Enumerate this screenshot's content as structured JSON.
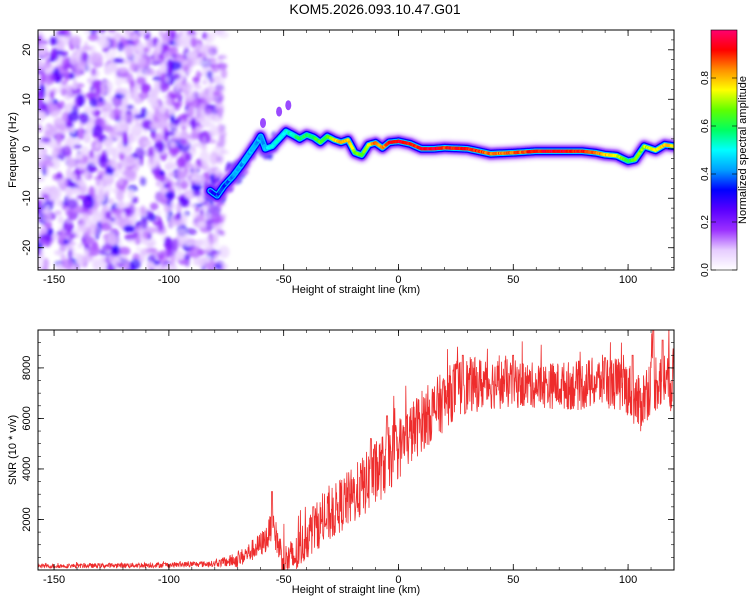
{
  "title": "KOM5.2026.093.10.47.G01",
  "colors": {
    "snr_line": "#ee2c2c",
    "frame": "#000000",
    "colormap": [
      "#ffffff",
      "#e6ccff",
      "#9b30ff",
      "#5a00ff",
      "#0000ff",
      "#00a0ff",
      "#00ffff",
      "#00ff60",
      "#60ff00",
      "#ffff00",
      "#ff9000",
      "#ff0000",
      "#ff0070"
    ]
  },
  "chart_data": [
    {
      "type": "heatmap",
      "name": "spectrogram",
      "title": "KOM5.2026.093.10.47.G01",
      "xlabel": "Height of straight line (km)",
      "ylabel": "Frequency (Hz)",
      "xlim": [
        -157,
        120
      ],
      "ylim": [
        -24.5,
        24
      ],
      "xticks": [
        -150,
        -100,
        -50,
        0,
        50,
        100
      ],
      "yticks": [
        -20,
        -10,
        0,
        10,
        20
      ],
      "noise_region_km": [
        -157,
        -78
      ],
      "ridge": {
        "x": [
          -82,
          -79,
          -76,
          -72,
          -68,
          -65,
          -62,
          -60,
          -58,
          -55,
          -52,
          -49,
          -46,
          -43,
          -40,
          -37,
          -34,
          -31,
          -28,
          -25,
          -22,
          -19,
          -16,
          -13,
          -10,
          -7,
          -4,
          0,
          5,
          10,
          15,
          20,
          30,
          40,
          50,
          60,
          70,
          80,
          86,
          90,
          95,
          100,
          103,
          107,
          112,
          116,
          120
        ],
        "y": [
          -8.5,
          -9.5,
          -7.5,
          -5.5,
          -3,
          -1,
          1,
          2.5,
          0,
          0.5,
          2,
          3.5,
          2.8,
          2,
          2.8,
          2.3,
          1.3,
          2.5,
          1.8,
          1.3,
          1.8,
          -0.8,
          -1.3,
          0.8,
          1.2,
          0.2,
          1.3,
          1.5,
          1,
          0,
          0,
          0.2,
          0,
          -1,
          -0.8,
          -0.5,
          -0.5,
          -0.5,
          -0.8,
          -1.2,
          -1.4,
          -2.5,
          -2.2,
          0.5,
          -0.3,
          0.8,
          0.5
        ],
        "amplitude": [
          0.3,
          0.35,
          0.35,
          0.4,
          0.42,
          0.45,
          0.45,
          0.4,
          0.45,
          0.5,
          0.5,
          0.5,
          0.55,
          0.6,
          0.6,
          0.6,
          0.65,
          0.65,
          0.75,
          0.8,
          0.8,
          0.7,
          0.65,
          0.75,
          0.85,
          0.8,
          0.9,
          0.95,
          0.9,
          0.92,
          0.95,
          0.9,
          0.92,
          0.85,
          0.85,
          0.9,
          0.95,
          0.9,
          0.85,
          0.8,
          0.75,
          0.6,
          0.65,
          0.7,
          0.75,
          0.8,
          0.75
        ]
      },
      "colorbar": {
        "label": "Normalized spectral amplitude",
        "range": [
          0,
          1
        ],
        "ticks": [
          0.0,
          0.2,
          0.4,
          0.6,
          0.8
        ]
      }
    },
    {
      "type": "line",
      "name": "snr",
      "xlabel": "Height of straight line (km)",
      "ylabel": "SNR (10 * v/v)",
      "xlim": [
        -157,
        120
      ],
      "ylim": [
        0,
        9500
      ],
      "xticks": [
        -150,
        -100,
        -50,
        0,
        50,
        100
      ],
      "yticks": [
        2000,
        4000,
        6000,
        8000
      ],
      "trend": {
        "x": [
          -157,
          -100,
          -80,
          -70,
          -65,
          -60,
          -57,
          -55,
          -53,
          -50,
          -45,
          -40,
          -35,
          -30,
          -25,
          -20,
          -10,
          0,
          10,
          20,
          25,
          30,
          40,
          60,
          80,
          90,
          100,
          105,
          110,
          115,
          120
        ],
        "y": [
          150,
          200,
          250,
          400,
          700,
          1000,
          1300,
          1900,
          1200,
          350,
          500,
          1300,
          1800,
          2100,
          2600,
          2900,
          3800,
          4800,
          5900,
          6700,
          7200,
          7300,
          7400,
          7300,
          7300,
          7500,
          7200,
          6500,
          7400,
          7600,
          7500
        ]
      },
      "spikes": {
        "x": [
          -55,
          -37,
          -12,
          -5,
          28,
          50,
          90,
          102,
          111,
          115
        ],
        "y": [
          3100,
          2500,
          5200,
          6100,
          8500,
          8500,
          8400,
          8500,
          9500,
          9100
        ]
      },
      "noise_amplitude": [
        {
          "x": -157,
          "a": 80
        },
        {
          "x": -80,
          "a": 120
        },
        {
          "x": -60,
          "a": 500
        },
        {
          "x": -40,
          "a": 900
        },
        {
          "x": -10,
          "a": 1300
        },
        {
          "x": 20,
          "a": 1200
        },
        {
          "x": 60,
          "a": 900
        },
        {
          "x": 100,
          "a": 1100
        },
        {
          "x": 120,
          "a": 1300
        }
      ]
    }
  ]
}
